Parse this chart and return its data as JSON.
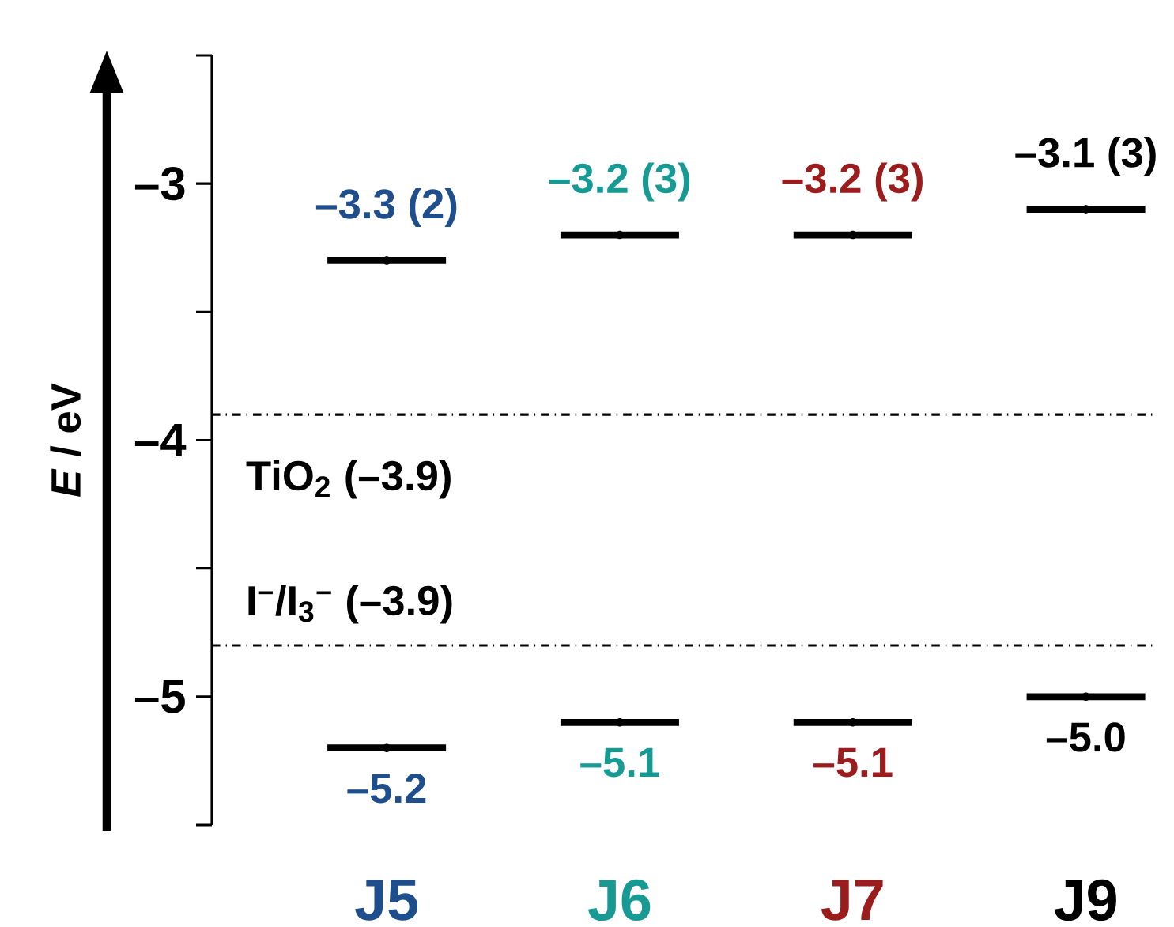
{
  "chart_data": {
    "type": "scatter",
    "categories": [
      "J5",
      "J6",
      "J7",
      "J9"
    ],
    "ylabel": "*E* / eV",
    "ylim": [
      -5.5,
      -2.5
    ],
    "yticks": [
      {
        "value": -5,
        "label": "–5"
      },
      {
        "value": -4,
        "label": "–4"
      },
      {
        "value": -3,
        "label": "–3"
      }
    ],
    "series": [
      {
        "color": "#000000",
        "values": [
          -3.3,
          -3.2,
          -3.2,
          -3.1
        ],
        "value_labels": [
          "–3.3 (2)",
          "–3.2 (3)",
          "–3.2 (3)",
          "–3.1 (3)"
        ]
      },
      {
        "color": "#000000",
        "values": [
          -5.2,
          -5.1,
          -5.1,
          -5.0
        ],
        "value_labels": [
          "–5.2",
          "–5.1",
          "–5.1",
          "–5.0"
        ]
      }
    ],
    "ref_lines": [
      {
        "axis": "y",
        "value": -3.9,
        "label": "TiO$_{2}$ (–3.9)",
        "line_style": "dashed"
      },
      {
        "axis": "y",
        "value": -4.8,
        "label": "I$^{–}$/I$_{3}$$^{–}$ (–3.9)",
        "line_style": "dashed"
      }
    ],
    "grid": false
  }
}
